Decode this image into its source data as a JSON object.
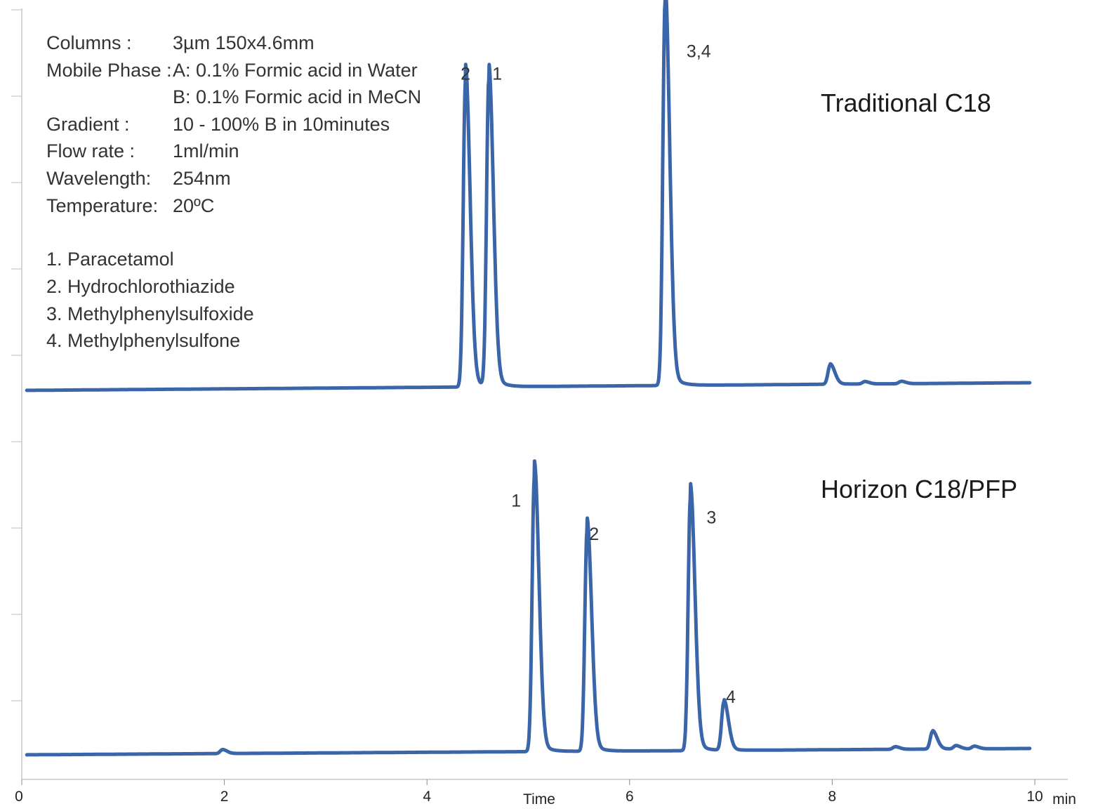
{
  "info": {
    "rows": [
      {
        "label": "Columns :",
        "value": "3µm 150x4.6mm"
      },
      {
        "label": "Mobile Phase :",
        "value": "A: 0.1% Formic acid in Water"
      },
      {
        "label": "",
        "value": "B: 0.1% Formic acid in MeCN"
      },
      {
        "label": "Gradient :",
        "value": "10 - 100% B in 10minutes"
      },
      {
        "label": "Flow rate :",
        "value": "1ml/min"
      },
      {
        "label": "Wavelength:",
        "value": "254nm"
      },
      {
        "label": "Temperature:",
        "value": "20ºC"
      }
    ],
    "compounds": [
      "1. Paracetamol",
      "2. Hydrochlorothiazide",
      "3. Methylphenylsulfoxide",
      "4. Methylphenylsulfone"
    ]
  },
  "chart_data": {
    "type": "line",
    "xlabel": "Time",
    "xunit": "min",
    "xlim": [
      0,
      10
    ],
    "xticks": [
      0,
      2,
      4,
      6,
      8,
      10
    ],
    "grid": false,
    "line_color": "#3a65a8",
    "series": [
      {
        "name": "Traditional C18",
        "peaks": [
          {
            "label": "2",
            "rt": 4.38,
            "height": 0.79
          },
          {
            "label": "1",
            "rt": 4.61,
            "height": 0.79
          },
          {
            "label": "3,4",
            "rt": 6.35,
            "height": 0.99
          }
        ],
        "minor_peaks": [
          {
            "rt": 7.98,
            "height": 0.05
          },
          {
            "rt": 8.32,
            "height": 0.006
          },
          {
            "rt": 8.68,
            "height": 0.006
          }
        ],
        "baseline": {
          "start": 0.0,
          "end": 0.02
        }
      },
      {
        "name": "Horizon C18/PFP",
        "peaks": [
          {
            "label": "1",
            "rt": 5.06,
            "height": 0.86
          },
          {
            "label": "2",
            "rt": 5.58,
            "height": 0.69
          },
          {
            "label": "3",
            "rt": 6.6,
            "height": 0.79
          },
          {
            "label": "4",
            "rt": 6.93,
            "height": 0.15
          }
        ],
        "minor_peaks": [
          {
            "rt": 1.98,
            "height": 0.012
          },
          {
            "rt": 8.62,
            "height": 0.008
          },
          {
            "rt": 8.99,
            "height": 0.055
          },
          {
            "rt": 9.22,
            "height": 0.01
          },
          {
            "rt": 9.4,
            "height": 0.008
          }
        ],
        "baseline": {
          "start": 0.0,
          "end": 0.02
        }
      }
    ]
  }
}
